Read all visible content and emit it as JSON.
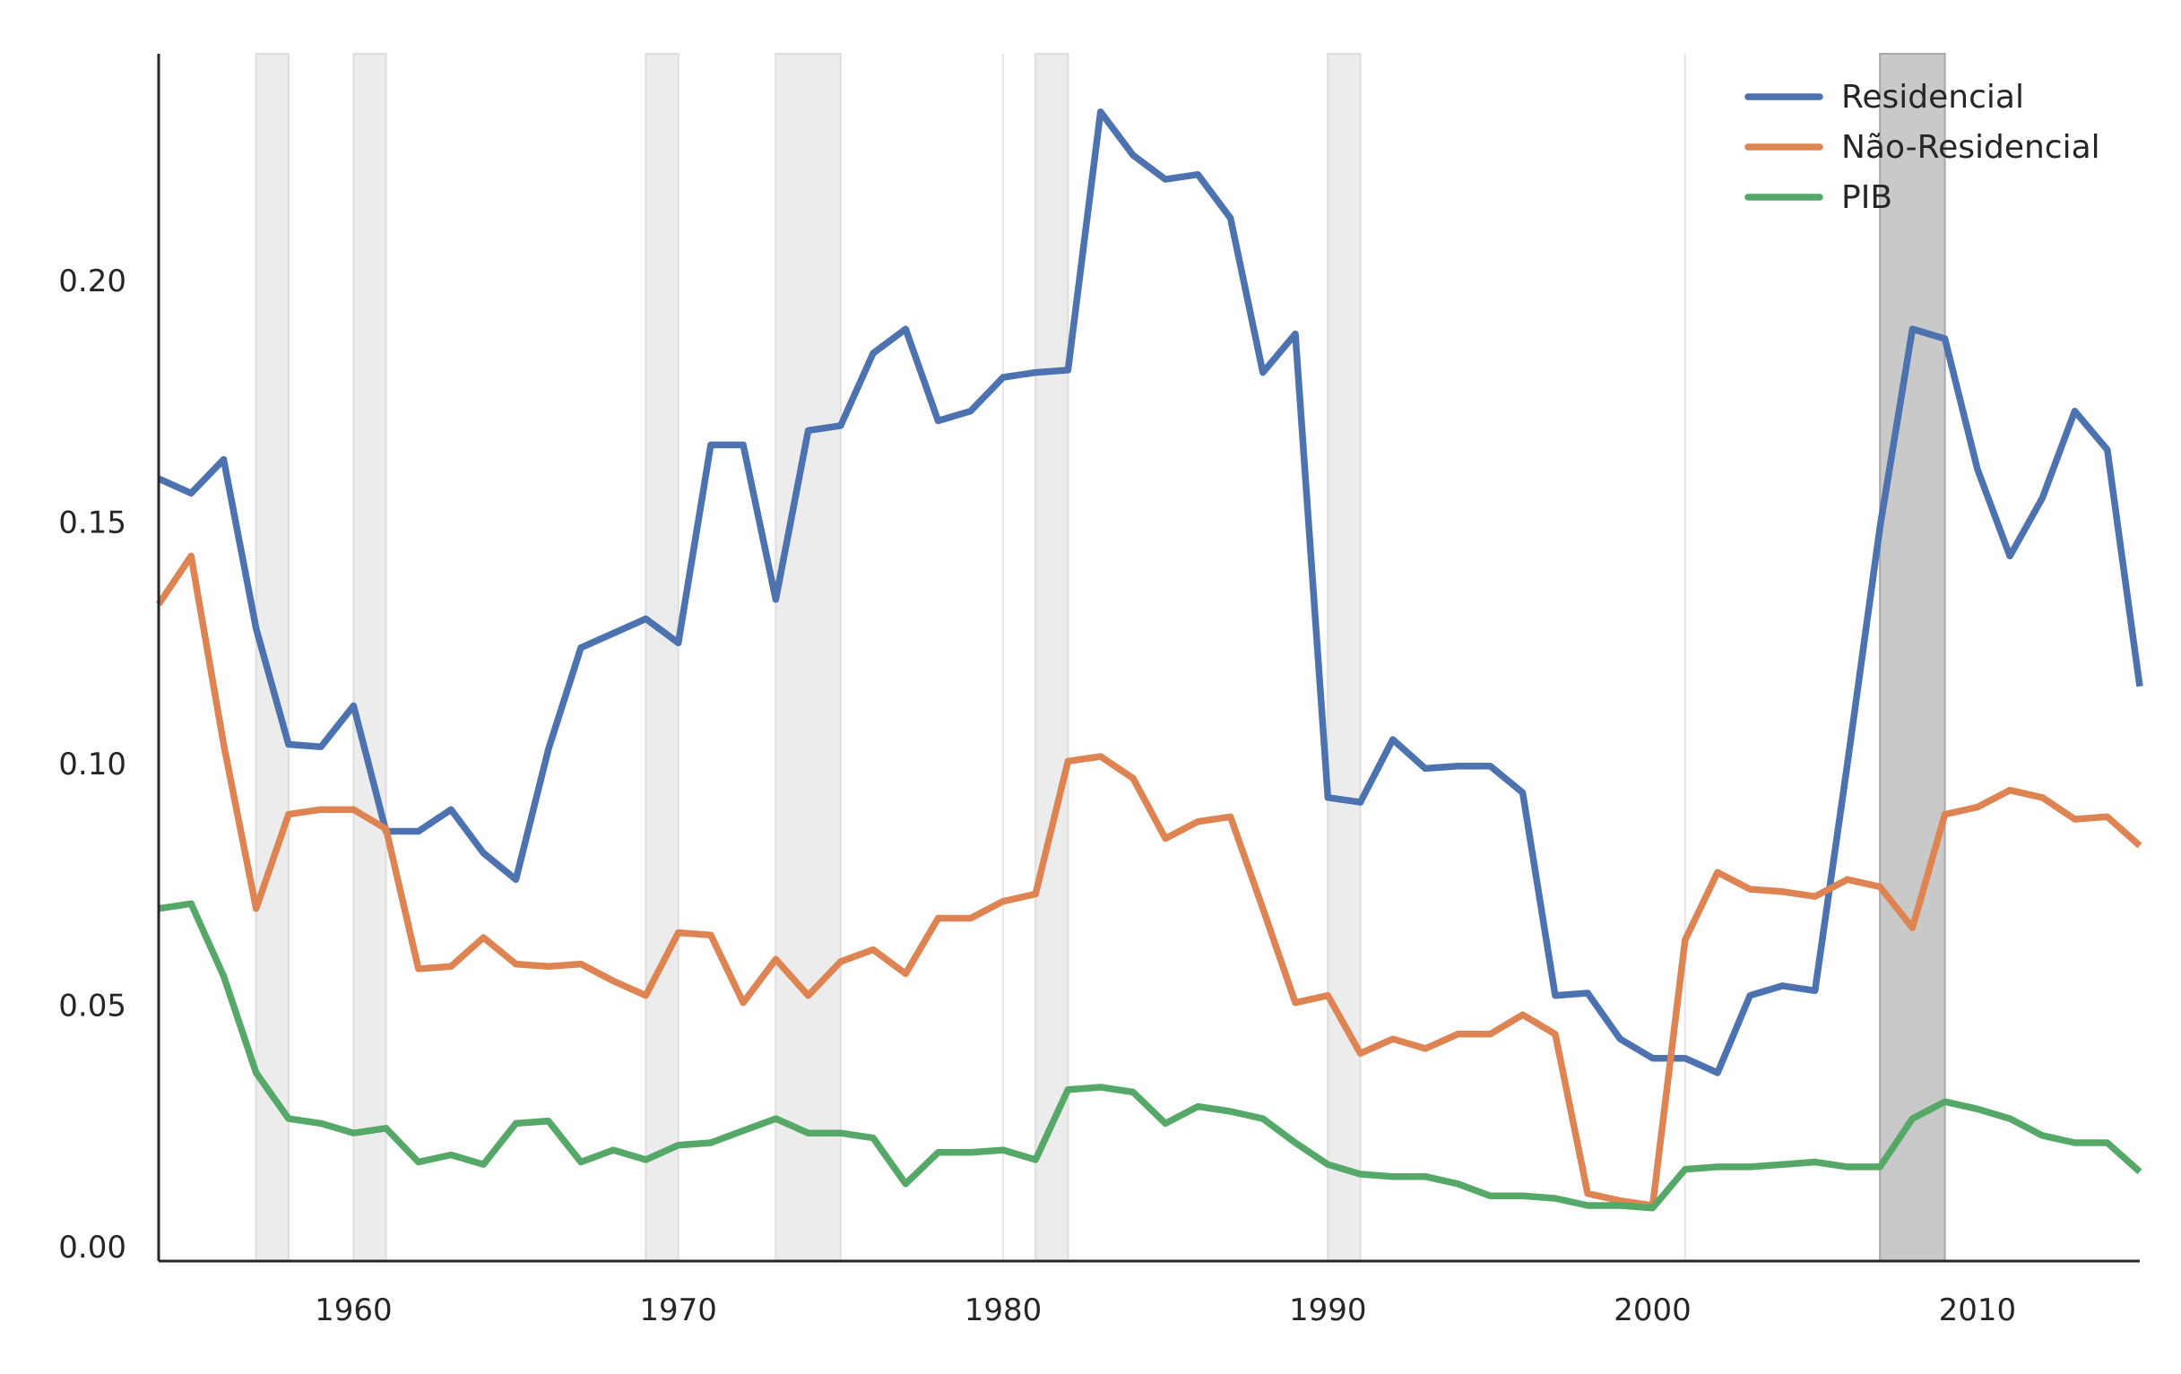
{
  "chart_data": {
    "type": "line",
    "title": "",
    "xlabel": "",
    "ylabel": "",
    "xlim": [
      1954,
      2015
    ],
    "ylim": [
      -0.003,
      0.247
    ],
    "x_ticks": [
      1960,
      1970,
      1980,
      1990,
      2000,
      2010
    ],
    "y_ticks": [
      0.0,
      0.05,
      0.1,
      0.15,
      0.2
    ],
    "y_tick_labels": [
      "0.00",
      "0.05",
      "0.10",
      "0.15",
      "0.20"
    ],
    "legend_position": "top-right",
    "recession_bands": [
      {
        "start": 1957,
        "end": 1958,
        "shade": "light"
      },
      {
        "start": 1960,
        "end": 1961,
        "shade": "light"
      },
      {
        "start": 1969,
        "end": 1970,
        "shade": "light"
      },
      {
        "start": 1973,
        "end": 1975,
        "shade": "light"
      },
      {
        "start": 1980,
        "end": 1980,
        "shade": "light"
      },
      {
        "start": 1981,
        "end": 1982,
        "shade": "light"
      },
      {
        "start": 1990,
        "end": 1991,
        "shade": "light"
      },
      {
        "start": 2001,
        "end": 2001,
        "shade": "light"
      },
      {
        "start": 2007,
        "end": 2009,
        "shade": "dark"
      }
    ],
    "x": [
      1954,
      1955,
      1956,
      1957,
      1958,
      1959,
      1960,
      1961,
      1962,
      1963,
      1964,
      1965,
      1966,
      1967,
      1968,
      1969,
      1970,
      1971,
      1972,
      1973,
      1974,
      1975,
      1976,
      1977,
      1978,
      1979,
      1980,
      1981,
      1982,
      1983,
      1984,
      1985,
      1986,
      1987,
      1988,
      1989,
      1990,
      1991,
      1992,
      1993,
      1994,
      1995,
      1996,
      1997,
      1998,
      1999,
      2000,
      2001,
      2002,
      2003,
      2004,
      2005,
      2006,
      2007,
      2008,
      2009,
      2010,
      2011,
      2012,
      2013,
      2014,
      2015
    ],
    "series": [
      {
        "name": "Residencial",
        "color": "#4c72b0",
        "values": [
          0.159,
          0.156,
          0.163,
          0.128,
          0.104,
          0.1035,
          0.112,
          0.086,
          0.086,
          0.0905,
          0.0815,
          0.076,
          0.103,
          0.124,
          0.127,
          0.13,
          0.125,
          0.166,
          0.166,
          0.134,
          0.169,
          0.17,
          0.185,
          0.19,
          0.171,
          0.173,
          0.18,
          0.181,
          0.1815,
          0.235,
          0.226,
          0.221,
          0.222,
          0.213,
          0.181,
          0.189,
          0.093,
          0.092,
          0.105,
          0.099,
          0.0995,
          0.0995,
          0.094,
          0.052,
          0.0525,
          0.043,
          0.039,
          0.039,
          0.036,
          0.052,
          0.054,
          0.053,
          0.1,
          0.149,
          0.19,
          0.188,
          0.161,
          0.143,
          0.155,
          0.173,
          0.165,
          0.116
        ]
      },
      {
        "name": "Não-Residencial",
        "color": "#dd8452",
        "values": [
          0.133,
          0.143,
          0.104,
          0.07,
          0.0895,
          0.0905,
          0.0905,
          0.0865,
          0.0575,
          0.058,
          0.064,
          0.0585,
          0.058,
          0.0585,
          0.055,
          0.052,
          0.065,
          0.0645,
          0.0505,
          0.0595,
          0.052,
          0.059,
          0.0615,
          0.0565,
          0.068,
          0.068,
          0.0715,
          0.073,
          0.1005,
          0.1015,
          0.097,
          0.0845,
          0.088,
          0.089,
          0.07,
          0.0505,
          0.052,
          0.04,
          0.043,
          0.041,
          0.044,
          0.044,
          0.048,
          0.044,
          0.011,
          0.0095,
          0.0085,
          0.0635,
          0.0775,
          0.074,
          0.0735,
          0.0725,
          0.076,
          0.0745,
          0.066,
          0.0895,
          0.091,
          0.0945,
          0.093,
          0.0885,
          0.089,
          0.083
        ]
      },
      {
        "name": "PIB",
        "color": "#55a868",
        "values": [
          0.07,
          0.071,
          0.056,
          0.036,
          0.0265,
          0.0255,
          0.0235,
          0.0245,
          0.0175,
          0.019,
          0.017,
          0.0255,
          0.026,
          0.0175,
          0.02,
          0.018,
          0.021,
          0.0215,
          0.024,
          0.0265,
          0.0235,
          0.0235,
          0.0225,
          0.013,
          0.0195,
          0.0195,
          0.02,
          0.018,
          0.0325,
          0.033,
          0.032,
          0.0255,
          0.029,
          0.028,
          0.0265,
          0.0215,
          0.017,
          0.015,
          0.0145,
          0.0145,
          0.013,
          0.0105,
          0.0105,
          0.01,
          0.0085,
          0.0085,
          0.008,
          0.016,
          0.0165,
          0.0165,
          0.017,
          0.0175,
          0.0165,
          0.0165,
          0.0265,
          0.03,
          0.0285,
          0.0265,
          0.023,
          0.0215,
          0.0215,
          0.0155
        ]
      }
    ]
  }
}
